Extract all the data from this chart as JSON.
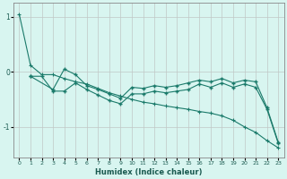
{
  "xlabel": "Humidex (Indice chaleur)",
  "bg_color": "#d8f5f0",
  "line_color": "#1a7a6a",
  "grid_color": "#c8d8d4",
  "xlim": [
    -0.5,
    23.5
  ],
  "ylim": [
    -1.55,
    1.25
  ],
  "yticks": [
    -1,
    0,
    1
  ],
  "xticks": [
    0,
    1,
    2,
    3,
    4,
    5,
    6,
    7,
    8,
    9,
    10,
    11,
    12,
    13,
    14,
    15,
    16,
    17,
    18,
    19,
    20,
    21,
    22,
    23
  ],
  "lines": [
    {
      "x": [
        0,
        1,
        2,
        3,
        4,
        5,
        6,
        7,
        8,
        9,
        10,
        11,
        12,
        13,
        14,
        15,
        16,
        17,
        18,
        19,
        20,
        21,
        22,
        23
      ],
      "y": [
        1.05,
        0.12,
        -0.05,
        -0.05,
        -0.12,
        -0.18,
        -0.22,
        -0.3,
        -0.38,
        -0.44,
        -0.5,
        -0.55,
        -0.58,
        -0.62,
        -0.65,
        -0.68,
        -0.72,
        -0.75,
        -0.8,
        -0.88,
        -1.0,
        -1.1,
        -1.25,
        -1.38
      ],
      "marker": false
    },
    {
      "x": [
        1,
        3,
        4,
        5,
        6,
        7,
        8,
        9,
        10,
        11,
        12,
        13,
        14,
        15,
        16,
        17,
        18,
        19,
        20,
        21,
        22,
        23
      ],
      "y": [
        -0.08,
        -0.32,
        0.05,
        -0.05,
        -0.25,
        -0.32,
        -0.4,
        -0.48,
        -0.28,
        -0.3,
        -0.25,
        -0.28,
        -0.25,
        -0.2,
        -0.15,
        -0.18,
        -0.12,
        -0.2,
        -0.15,
        -0.18,
        -0.65,
        -1.28
      ],
      "marker": true
    },
    {
      "x": [
        1,
        2,
        3,
        4,
        5,
        6,
        7,
        8,
        9,
        10,
        11,
        12,
        13,
        14,
        15,
        16,
        17,
        18,
        19,
        20,
        21,
        22,
        23
      ],
      "y": [
        -0.08,
        -0.08,
        -0.35,
        -0.35,
        -0.2,
        -0.32,
        -0.42,
        -0.52,
        -0.58,
        -0.4,
        -0.4,
        -0.35,
        -0.38,
        -0.35,
        -0.32,
        -0.22,
        -0.28,
        -0.2,
        -0.28,
        -0.22,
        -0.28,
        -0.68,
        -1.3
      ],
      "marker": true
    }
  ]
}
